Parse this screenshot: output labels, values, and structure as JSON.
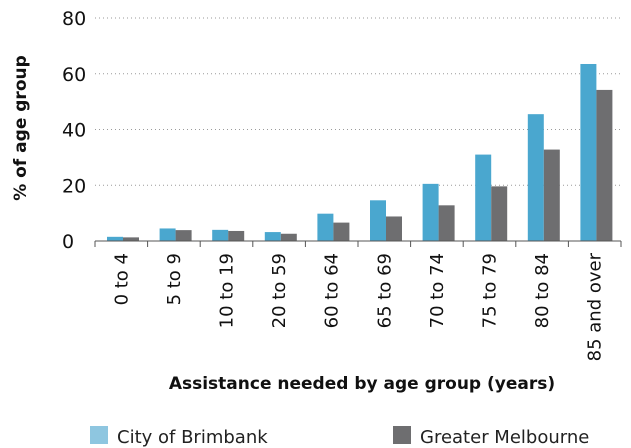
{
  "chart_data": {
    "type": "bar",
    "title": "",
    "xlabel": "Assistance needed by age group (years)",
    "ylabel": "% of age group",
    "ylim": [
      0,
      80
    ],
    "yticks": [
      0,
      20,
      40,
      60,
      80
    ],
    "grid": "horizontal dotted",
    "legend_position": "bottom",
    "categories": [
      "0 to 4",
      "5 to 9",
      "10 to 19",
      "20 to 59",
      "60 to 64",
      "65 to 69",
      "70 to 74",
      "75 to 79",
      "80 to 84",
      "85 and over"
    ],
    "series": [
      {
        "name": "City of Brimbank",
        "color": "#4aa7cf",
        "legend_color": "#8ec6e0",
        "values": [
          1.5,
          4.5,
          4.0,
          3.2,
          9.8,
          14.6,
          20.5,
          31.0,
          45.5,
          63.5
        ]
      },
      {
        "name": "Greater Melbourne",
        "color": "#6e6e70",
        "legend_color": "#6e6e70",
        "values": [
          1.3,
          3.9,
          3.6,
          2.6,
          6.6,
          8.8,
          12.8,
          19.6,
          32.8,
          54.2
        ]
      }
    ]
  }
}
